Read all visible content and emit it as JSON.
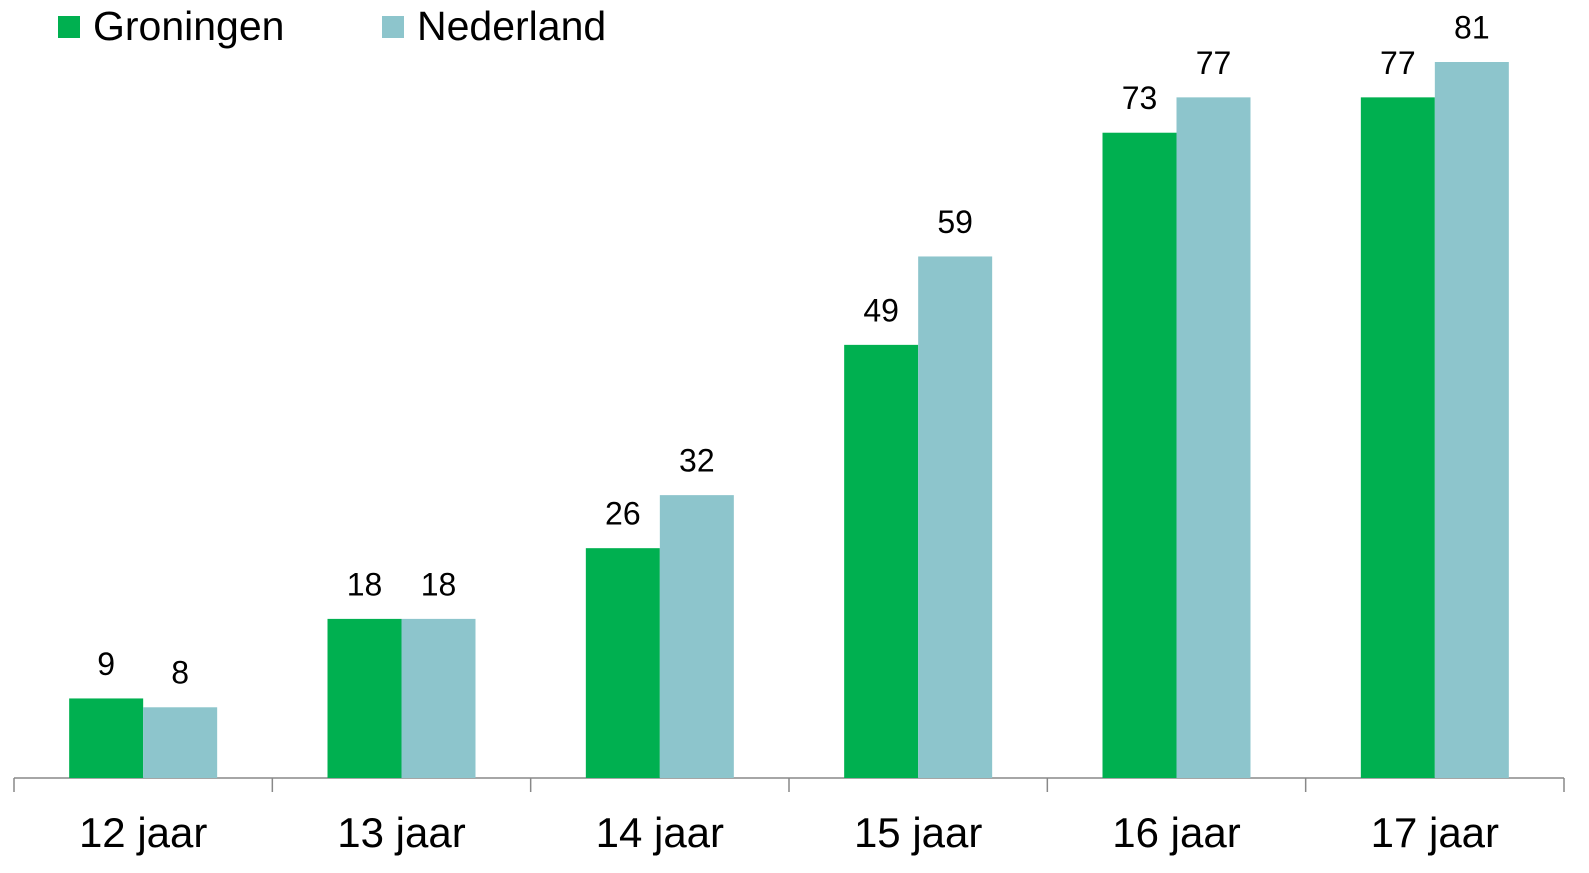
{
  "chart_data": {
    "type": "bar",
    "categories": [
      "12 jaar",
      "13 jaar",
      "14 jaar",
      "15 jaar",
      "16 jaar",
      "17 jaar"
    ],
    "series": [
      {
        "name": "Groningen",
        "color": "#00b050",
        "values": [
          9,
          18,
          26,
          49,
          73,
          77
        ]
      },
      {
        "name": "Nederland",
        "color": "#8dc5cc",
        "values": [
          8,
          18,
          32,
          59,
          77,
          81
        ]
      }
    ],
    "legend": "top-left"
  }
}
